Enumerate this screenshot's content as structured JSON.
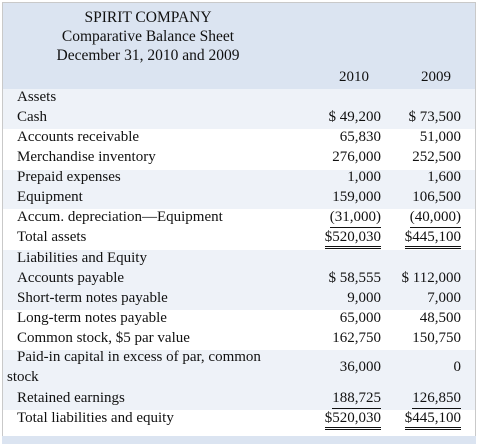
{
  "header": {
    "company": "SPIRIT COMPANY",
    "statement": "Comparative Balance Sheet",
    "date": "December 31, 2010 and 2009",
    "year1": "2010",
    "year2": "2009"
  },
  "rows": [
    {
      "label": "Assets",
      "v1": "",
      "v2": ""
    },
    {
      "label": "Cash",
      "v1": "$ 49,200",
      "v2": "$ 73,500"
    },
    {
      "label": "Accounts receivable",
      "v1": "65,830",
      "v2": "51,000"
    },
    {
      "label": "Merchandise inventory",
      "v1": "276,000",
      "v2": "252,500"
    },
    {
      "label": "Prepaid expenses",
      "v1": "1,000",
      "v2": "1,600"
    },
    {
      "label": "Equipment",
      "v1": "159,000",
      "v2": "106,500"
    },
    {
      "label": "Accum. depreciation—Equipment",
      "v1": "(31,000)",
      "v2": "(40,000)"
    },
    {
      "label": "Total assets",
      "v1": "$520,030",
      "v2": "$445,100"
    },
    {
      "label": "Liabilities and Equity",
      "v1": "",
      "v2": ""
    },
    {
      "label": "Accounts payable",
      "v1": "$ 58,555",
      "v2": "$ 112,000"
    },
    {
      "label": "Short-term notes payable",
      "v1": "9,000",
      "v2": "7,000"
    },
    {
      "label": "Long-term notes payable",
      "v1": "65,000",
      "v2": "48,500"
    },
    {
      "label": "Common stock, $5 par value",
      "v1": "162,750",
      "v2": "150,750"
    },
    {
      "label": "Paid-in capital in excess of par, common",
      "label2": "stock",
      "v1": "36,000",
      "v2": "0"
    },
    {
      "label": "Retained earnings",
      "v1": "188,725",
      "v2": "126,850"
    },
    {
      "label": "Total liabilities and equity",
      "v1": "$520,030",
      "v2": "$445,100"
    }
  ]
}
